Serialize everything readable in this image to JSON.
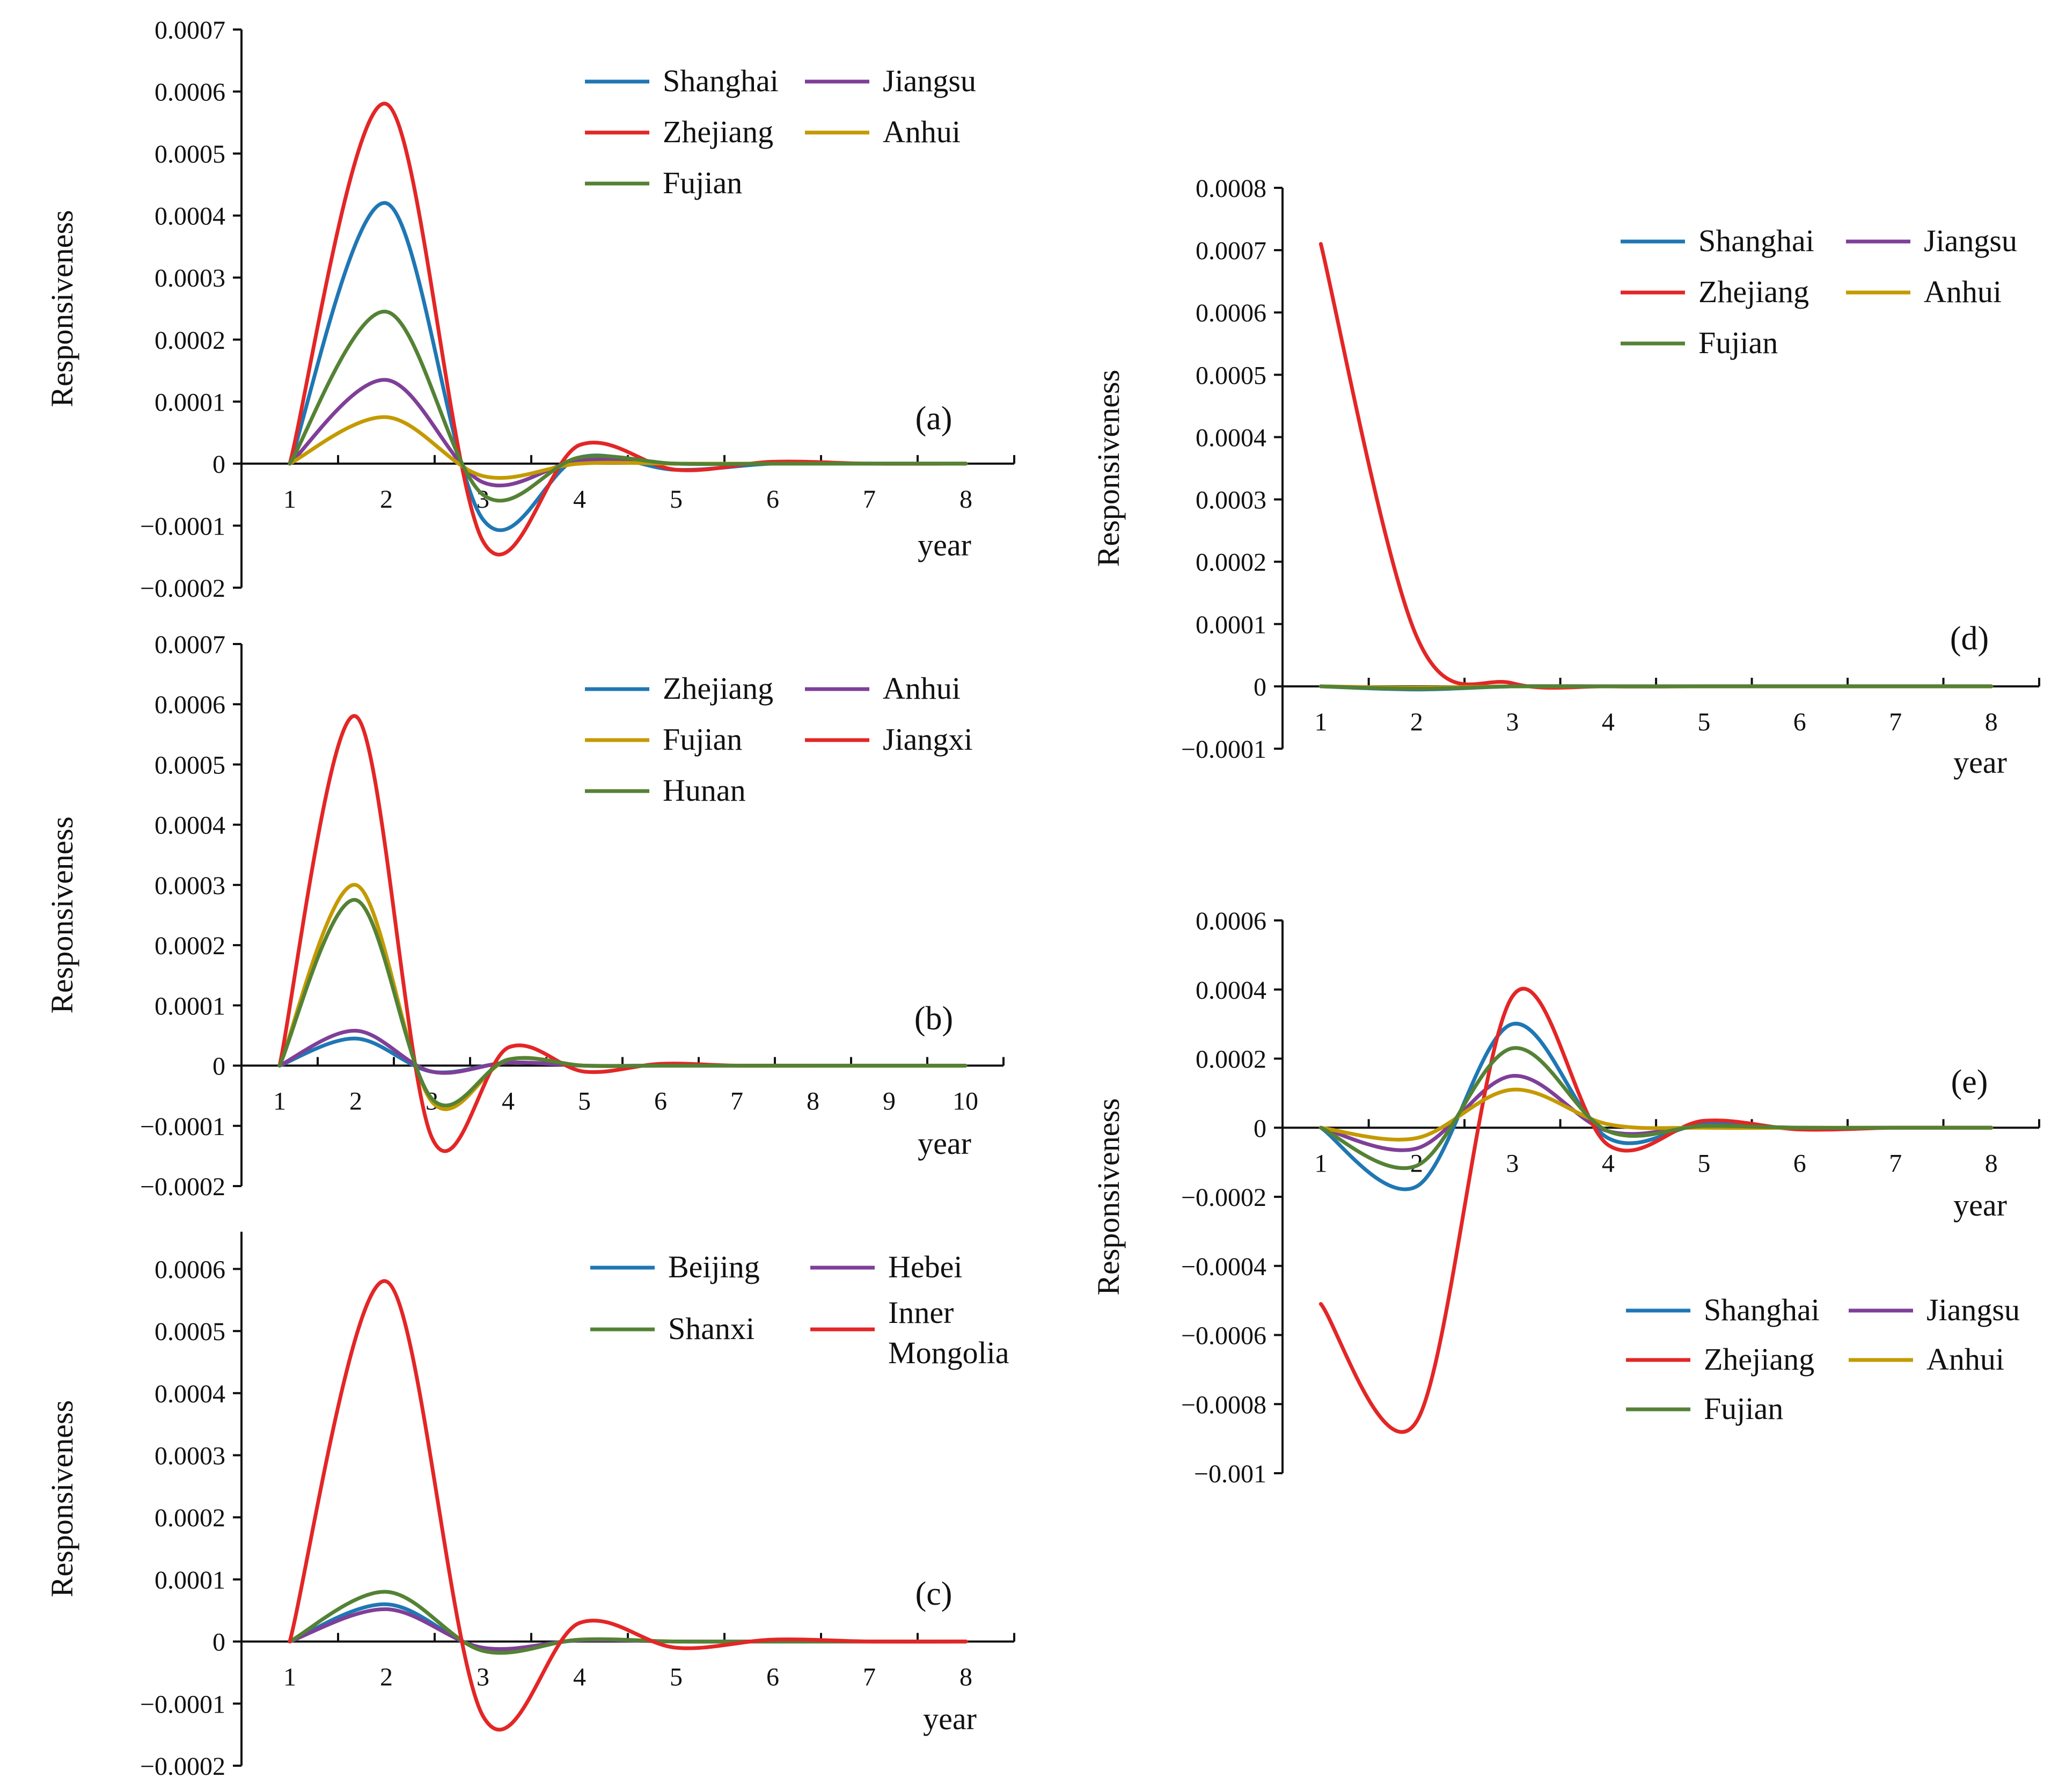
{
  "chart_data": [
    {
      "type": "line",
      "panel_label": "(a)",
      "ylabel": "Responsiveness",
      "xlabel": "year",
      "ylim": [
        -0.0002,
        0.0007
      ],
      "yticks": [
        -0.0002,
        -0.0001,
        0,
        0.0001,
        0.0002,
        0.0003,
        0.0004,
        0.0005,
        0.0006,
        0.0007
      ],
      "ytick_labels": [
        "−0.0002",
        "−0.0001",
        "0",
        "0.0001",
        "0.0002",
        "0.0003",
        "0.0004",
        "0.0005",
        "0.0006",
        "0.0007"
      ],
      "xlim": [
        0.5,
        8.5
      ],
      "xticks": [
        1,
        2,
        3,
        4,
        5,
        6,
        7,
        8
      ],
      "xtick_labels": [
        "1",
        "2",
        "3",
        "4",
        "5",
        "6",
        "7",
        "8"
      ],
      "legend_position": "top-right",
      "legend_columns": 2,
      "series": [
        {
          "name": "Shanghai",
          "color": "#1f77b4",
          "x": [
            1,
            2,
            3,
            4,
            5,
            6,
            7,
            8
          ],
          "values": [
            0,
            0.00042,
            -9e-05,
            1e-05,
            -1e-05,
            0,
            0,
            0
          ]
        },
        {
          "name": "Jiangsu",
          "color": "#7f3f98",
          "x": [
            1,
            2,
            3,
            4,
            5,
            6,
            7,
            8
          ],
          "values": [
            0,
            0.000135,
            -3e-05,
            5e-06,
            0,
            0,
            0,
            0
          ]
        },
        {
          "name": "Zhejiang",
          "color": "#e32626",
          "x": [
            1,
            2,
            3,
            4,
            5,
            6,
            7,
            8
          ],
          "values": [
            0,
            0.00058,
            -0.000125,
            3e-05,
            -1e-05,
            3e-06,
            0,
            0
          ]
        },
        {
          "name": "Anhui",
          "color": "#c49a00",
          "x": [
            1,
            2,
            3,
            4,
            5,
            6,
            7,
            8
          ],
          "values": [
            0,
            7.5e-05,
            -2e-05,
            0,
            0,
            0,
            0,
            0
          ]
        },
        {
          "name": "Fujian",
          "color": "#548235",
          "x": [
            1,
            2,
            3,
            4,
            5,
            6,
            7,
            8
          ],
          "values": [
            0,
            0.000245,
            -5e-05,
            1e-05,
            0,
            0,
            0,
            0
          ]
        }
      ]
    },
    {
      "type": "line",
      "panel_label": "(b)",
      "ylabel": "Responsiveness",
      "xlabel": "year",
      "ylim": [
        -0.0002,
        0.0007
      ],
      "yticks": [
        -0.0002,
        -0.0001,
        0,
        0.0001,
        0.0002,
        0.0003,
        0.0004,
        0.0005,
        0.0006,
        0.0007
      ],
      "ytick_labels": [
        "−0.0002",
        "−0.0001",
        "0",
        "0.0001",
        "0.0002",
        "0.0003",
        "0.0004",
        "0.0005",
        "0.0006",
        "0.0007"
      ],
      "xlim": [
        0.5,
        10.5
      ],
      "xticks": [
        1,
        2,
        3,
        4,
        5,
        6,
        7,
        8,
        9,
        10
      ],
      "xtick_labels": [
        "1",
        "2",
        "3",
        "4",
        "5",
        "6",
        "7",
        "8",
        "9",
        "10"
      ],
      "legend_position": "top-right",
      "legend_columns": 2,
      "series": [
        {
          "name": "Zhejiang",
          "color": "#1f77b4",
          "x": [
            1,
            2,
            3,
            4,
            5,
            6,
            7,
            8,
            9,
            10
          ],
          "values": [
            0,
            4.5e-05,
            -1e-05,
            5e-06,
            0,
            0,
            0,
            0,
            0,
            0
          ]
        },
        {
          "name": "Anhui",
          "color": "#7f3f98",
          "x": [
            1,
            2,
            3,
            4,
            5,
            6,
            7,
            8,
            9,
            10
          ],
          "values": [
            0,
            5.8e-05,
            -1e-05,
            5e-06,
            0,
            0,
            0,
            0,
            0,
            0
          ]
        },
        {
          "name": "Fujian",
          "color": "#c49a00",
          "x": [
            1,
            2,
            3,
            4,
            5,
            6,
            7,
            8,
            9,
            10
          ],
          "values": [
            0,
            0.0003,
            -6e-05,
            1e-05,
            0,
            0,
            0,
            0,
            0,
            0
          ]
        },
        {
          "name": "Jiangxi",
          "color": "#e32626",
          "x": [
            1,
            2,
            3,
            4,
            5,
            6,
            7,
            8,
            9,
            10
          ],
          "values": [
            0,
            0.00058,
            -0.00012,
            3e-05,
            -1e-05,
            3e-06,
            0,
            0,
            0,
            0
          ]
        },
        {
          "name": "Hunan",
          "color": "#548235",
          "x": [
            1,
            2,
            3,
            4,
            5,
            6,
            7,
            8,
            9,
            10
          ],
          "values": [
            0,
            0.000275,
            -5.5e-05,
            1e-05,
            0,
            0,
            0,
            0,
            0,
            0
          ]
        }
      ]
    },
    {
      "type": "line",
      "panel_label": "(c)",
      "ylabel": "Responsiveness",
      "xlabel": "year",
      "ylim": [
        -0.0002,
        0.00066
      ],
      "yticks": [
        -0.0002,
        -0.0001,
        0,
        0.0001,
        0.0002,
        0.0003,
        0.0004,
        0.0005,
        0.0006
      ],
      "ytick_labels": [
        "−0.0002",
        "−0.0001",
        "0",
        "0.0001",
        "0.0002",
        "0.0003",
        "0.0004",
        "0.0005",
        "0.0006"
      ],
      "xlim": [
        0.5,
        8.5
      ],
      "xticks": [
        1,
        2,
        3,
        4,
        5,
        6,
        7,
        8
      ],
      "xtick_labels": [
        "1",
        "2",
        "3",
        "4",
        "5",
        "6",
        "7",
        "8"
      ],
      "legend_position": "top-right",
      "legend_columns": 2,
      "series": [
        {
          "name": "Beijing",
          "color": "#1f77b4",
          "x": [
            1,
            2,
            3,
            4,
            5,
            6,
            7,
            8
          ],
          "values": [
            0,
            6e-05,
            -1.2e-05,
            2e-06,
            0,
            0,
            0,
            0
          ]
        },
        {
          "name": "Hebei",
          "color": "#7f3f98",
          "x": [
            1,
            2,
            3,
            4,
            5,
            6,
            7,
            8
          ],
          "values": [
            0,
            5.2e-05,
            -1e-05,
            2e-06,
            0,
            0,
            0,
            0
          ]
        },
        {
          "name": "Shanxi",
          "color": "#548235",
          "x": [
            1,
            2,
            3,
            4,
            5,
            6,
            7,
            8
          ],
          "values": [
            0,
            8e-05,
            -1.5e-05,
            3e-06,
            0,
            0,
            0,
            0
          ]
        },
        {
          "name": "Inner Mongolia",
          "name_lines": [
            "Inner",
            "Mongolia"
          ],
          "color": "#e32626",
          "x": [
            1,
            2,
            3,
            4,
            5,
            6,
            7,
            8
          ],
          "values": [
            0,
            0.00058,
            -0.00012,
            3e-05,
            -1e-05,
            3e-06,
            0,
            0
          ]
        }
      ]
    },
    {
      "type": "line",
      "panel_label": "(d)",
      "ylabel": "Responsiveness",
      "xlabel": "year",
      "ylim": [
        -0.0001,
        0.0008
      ],
      "yticks": [
        -0.0001,
        0,
        0.0001,
        0.0002,
        0.0003,
        0.0004,
        0.0005,
        0.0006,
        0.0007,
        0.0008
      ],
      "ytick_labels": [
        "−0.0001",
        "0",
        "0.0001",
        "0.0002",
        "0.0003",
        "0.0004",
        "0.0005",
        "0.0006",
        "0.0007",
        "0.0008"
      ],
      "xlim": [
        0.6,
        8.5
      ],
      "xticks": [
        1,
        2,
        3,
        4,
        5,
        6,
        7,
        8
      ],
      "xtick_labels": [
        "1",
        "2",
        "3",
        "4",
        "5",
        "6",
        "7",
        "8"
      ],
      "legend_position": "top-right",
      "legend_columns": 2,
      "series": [
        {
          "name": "Shanghai",
          "color": "#1f77b4",
          "x": [
            1,
            2,
            3,
            4,
            5,
            6,
            7,
            8
          ],
          "values": [
            0,
            -5e-06,
            0,
            0,
            0,
            0,
            0,
            0
          ]
        },
        {
          "name": "Jiangsu",
          "color": "#7f3f98",
          "x": [
            1,
            2,
            3,
            4,
            5,
            6,
            7,
            8
          ],
          "values": [
            0,
            -3e-06,
            0,
            0,
            0,
            0,
            0,
            0
          ]
        },
        {
          "name": "Zhejiang",
          "color": "#e32626",
          "x": [
            1,
            2,
            3,
            4,
            5,
            6,
            7,
            8
          ],
          "values": [
            0.00071,
            8e-05,
            5e-06,
            0,
            0,
            0,
            0,
            0
          ]
        },
        {
          "name": "Anhui",
          "color": "#c49a00",
          "x": [
            1,
            2,
            3,
            4,
            5,
            6,
            7,
            8
          ],
          "values": [
            0,
            -2e-06,
            0,
            0,
            0,
            0,
            0,
            0
          ]
        },
        {
          "name": "Fujian",
          "color": "#548235",
          "x": [
            1,
            2,
            3,
            4,
            5,
            6,
            7,
            8
          ],
          "values": [
            0,
            -4e-06,
            0,
            0,
            0,
            0,
            0,
            0
          ]
        }
      ]
    },
    {
      "type": "line",
      "panel_label": "(e)",
      "ylabel": "Responsiveness",
      "xlabel": "year",
      "ylim": [
        -0.001,
        0.0006
      ],
      "yticks": [
        -0.001,
        -0.0008,
        -0.0006,
        -0.0004,
        -0.0002,
        0,
        0.0002,
        0.0004,
        0.0006
      ],
      "ytick_labels": [
        "−0.001",
        "−0.0008",
        "−0.0006",
        "−0.0004",
        "−0.0002",
        "0",
        "0.0002",
        "0.0004",
        "0.0006"
      ],
      "xlim": [
        0.6,
        8.5
      ],
      "xticks": [
        1,
        2,
        3,
        4,
        5,
        6,
        7,
        8
      ],
      "xtick_labels": [
        "1",
        "2",
        "3",
        "4",
        "5",
        "6",
        "7",
        "8"
      ],
      "legend_position": "bottom-right",
      "legend_columns": 2,
      "series": [
        {
          "name": "Shanghai",
          "color": "#1f77b4",
          "x": [
            1,
            2,
            3,
            4,
            5,
            6,
            7,
            8
          ],
          "values": [
            0,
            -0.00017,
            0.0003,
            -3e-05,
            1e-05,
            -3e-06,
            0,
            0
          ]
        },
        {
          "name": "Jiangsu",
          "color": "#7f3f98",
          "x": [
            1,
            2,
            3,
            4,
            5,
            6,
            7,
            8
          ],
          "values": [
            0,
            -6e-05,
            0.00015,
            -1e-05,
            5e-06,
            0,
            0,
            0
          ]
        },
        {
          "name": "Zhejiang",
          "color": "#e32626",
          "x": [
            1,
            2,
            3,
            4,
            5,
            6,
            7,
            8
          ],
          "values": [
            -0.00051,
            -0.00085,
            0.00038,
            -5e-05,
            2e-05,
            -5e-06,
            0,
            0
          ]
        },
        {
          "name": "Anhui",
          "color": "#c49a00",
          "x": [
            1,
            2,
            3,
            4,
            5,
            6,
            7,
            8
          ],
          "values": [
            0,
            -3e-05,
            0.00011,
            1e-05,
            0,
            0,
            0,
            0
          ]
        },
        {
          "name": "Fujian",
          "color": "#548235",
          "x": [
            1,
            2,
            3,
            4,
            5,
            6,
            7,
            8
          ],
          "values": [
            0,
            -0.00011,
            0.00023,
            -1e-05,
            5e-06,
            0,
            0,
            0
          ]
        }
      ]
    }
  ]
}
